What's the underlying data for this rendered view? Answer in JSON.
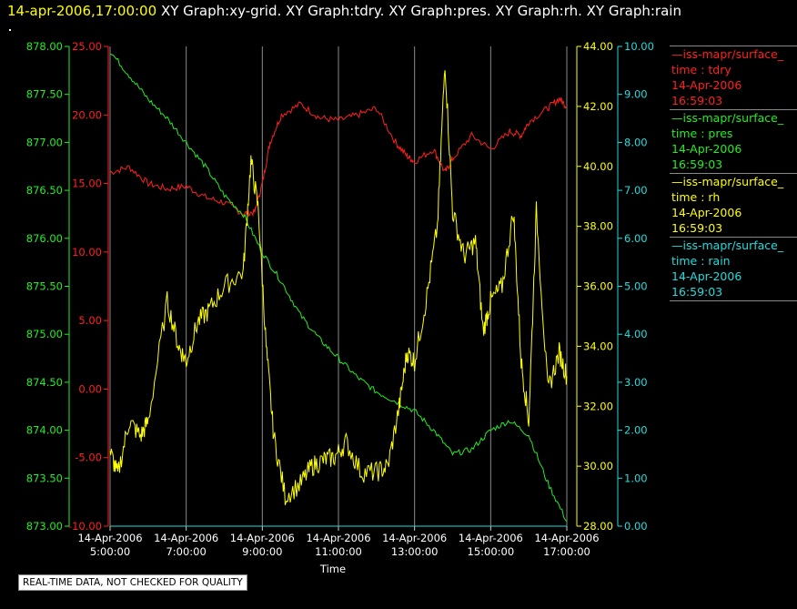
{
  "header": {
    "datetime": "14-apr-2006,17:00:00",
    "graphs": [
      "XY Graph:xy-grid.",
      "XY Graph:tdry.",
      "XY Graph:pres.",
      "XY Graph:rh.",
      "XY Graph:rain"
    ]
  },
  "legend": [
    {
      "source": "—iss-mapr/surface_",
      "var": "time : tdry",
      "date": "14-Apr-2006",
      "time": "16:59:03",
      "color": "#ff2020"
    },
    {
      "source": "—iss-mapr/surface_",
      "var": "time : pres",
      "date": "14-Apr-2006",
      "time": "16:59:03",
      "color": "#22ee22"
    },
    {
      "source": "—iss-mapr/surface_",
      "var": "time : rh",
      "date": "14-Apr-2006",
      "time": "16:59:03",
      "color": "#ffff00"
    },
    {
      "source": "—iss-mapr/surface_",
      "var": "time : rain",
      "date": "14-Apr-2006",
      "time": "16:59:03",
      "color": "#22dddd"
    }
  ],
  "note": "REAL-TIME DATA, NOT CHECKED FOR QUALITY",
  "chart_data": {
    "type": "line",
    "xlabel": "Time",
    "x_ticks": [
      {
        "date": "14-Apr-2006",
        "time": "5:00:00"
      },
      {
        "date": "14-Apr-2006",
        "time": "7:00:00"
      },
      {
        "date": "14-Apr-2006",
        "time": "9:00:00"
      },
      {
        "date": "14-Apr-2006",
        "time": "11:00:00"
      },
      {
        "date": "14-Apr-2006",
        "time": "13:00:00"
      },
      {
        "date": "14-Apr-2006",
        "time": "15:00:00"
      },
      {
        "date": "14-Apr-2006",
        "time": "17:00:00"
      }
    ],
    "xlim": [
      5,
      17
    ],
    "grid": true,
    "axes": {
      "tdry": {
        "color": "#ff2020",
        "ylim": [
          -10,
          25
        ],
        "ticks": [
          "-10.00",
          "-5.00",
          "0.00",
          "5.00",
          "10.00",
          "15.00",
          "20.00",
          "25.00"
        ]
      },
      "pres": {
        "color": "#22ee22",
        "ylim": [
          873,
          878
        ],
        "ticks": [
          "873.00",
          "873.50",
          "874.00",
          "874.50",
          "875.00",
          "875.50",
          "876.00",
          "876.50",
          "877.00",
          "877.50",
          "878.00"
        ]
      },
      "rh": {
        "color": "#ffff00",
        "ylim": [
          28,
          44
        ],
        "ticks": [
          "28.00",
          "30.00",
          "32.00",
          "34.00",
          "36.00",
          "38.00",
          "40.00",
          "42.00",
          "44.00"
        ]
      },
      "rain": {
        "color": "#22dddd",
        "ylim": [
          0,
          10
        ],
        "ticks": [
          "0.00",
          "1.00",
          "2.00",
          "3.00",
          "4.00",
          "5.00",
          "6.00",
          "7.00",
          "8.00",
          "9.00",
          "10.00"
        ]
      }
    },
    "series": [
      {
        "name": "tdry",
        "axis": "tdry",
        "x": [
          5.0,
          5.5,
          6.0,
          6.5,
          7.0,
          7.5,
          8.0,
          8.5,
          8.8,
          9.0,
          9.2,
          9.5,
          10.0,
          10.5,
          11.0,
          11.5,
          12.0,
          12.5,
          12.8,
          13.0,
          13.5,
          13.8,
          14.0,
          14.5,
          15.0,
          15.5,
          15.8,
          16.0,
          16.5,
          16.8,
          17.0
        ],
        "y": [
          15.8,
          16.2,
          15.0,
          14.6,
          14.8,
          14.0,
          13.6,
          12.8,
          12.9,
          15.0,
          18.0,
          20.0,
          20.8,
          19.8,
          19.6,
          20.0,
          20.5,
          18.0,
          17.0,
          16.6,
          17.5,
          15.8,
          16.8,
          18.5,
          17.5,
          18.8,
          18.5,
          19.5,
          20.5,
          21.2,
          20.6
        ]
      },
      {
        "name": "pres",
        "axis": "pres",
        "x": [
          5.0,
          5.5,
          6.0,
          6.5,
          7.0,
          7.5,
          8.0,
          8.5,
          9.0,
          9.5,
          10.0,
          10.5,
          11.0,
          11.5,
          12.0,
          12.5,
          13.0,
          13.5,
          14.0,
          14.5,
          15.0,
          15.5,
          16.0,
          16.5,
          17.0
        ],
        "y": [
          877.95,
          877.7,
          877.45,
          877.25,
          877.0,
          876.75,
          876.45,
          876.25,
          875.85,
          875.55,
          875.2,
          874.95,
          874.75,
          874.55,
          874.4,
          874.3,
          874.2,
          874.0,
          873.75,
          873.8,
          874.0,
          874.1,
          873.95,
          873.45,
          873.05
        ]
      },
      {
        "name": "rh",
        "axis": "rh",
        "x": [
          5.0,
          5.2,
          5.5,
          5.8,
          6.0,
          6.5,
          6.8,
          7.0,
          7.3,
          7.6,
          8.0,
          8.5,
          8.7,
          8.9,
          9.1,
          9.3,
          9.6,
          10.0,
          10.3,
          10.6,
          10.9,
          11.2,
          11.6,
          12.0,
          12.3,
          12.6,
          12.8,
          13.0,
          13.3,
          13.6,
          13.8,
          14.0,
          14.3,
          14.6,
          14.8,
          15.0,
          15.3,
          15.6,
          15.8,
          16.0,
          16.2,
          16.5,
          16.8,
          17.0
        ],
        "y": [
          30.5,
          29.7,
          31.5,
          31.0,
          31.5,
          35.5,
          34.0,
          33.5,
          34.8,
          35.2,
          36.0,
          36.5,
          40.2,
          38.5,
          34.0,
          31.0,
          29.0,
          29.4,
          30.0,
          30.2,
          30.3,
          30.8,
          29.8,
          29.8,
          30.0,
          32.0,
          33.8,
          33.5,
          35.5,
          38.0,
          43.5,
          38.5,
          37.0,
          37.5,
          34.5,
          35.5,
          36.0,
          38.5,
          33.5,
          31.5,
          38.5,
          32.5,
          33.8,
          33.0
        ]
      },
      {
        "name": "rain",
        "axis": "rain",
        "x": [
          5,
          17
        ],
        "y": [
          0,
          0
        ]
      }
    ]
  }
}
